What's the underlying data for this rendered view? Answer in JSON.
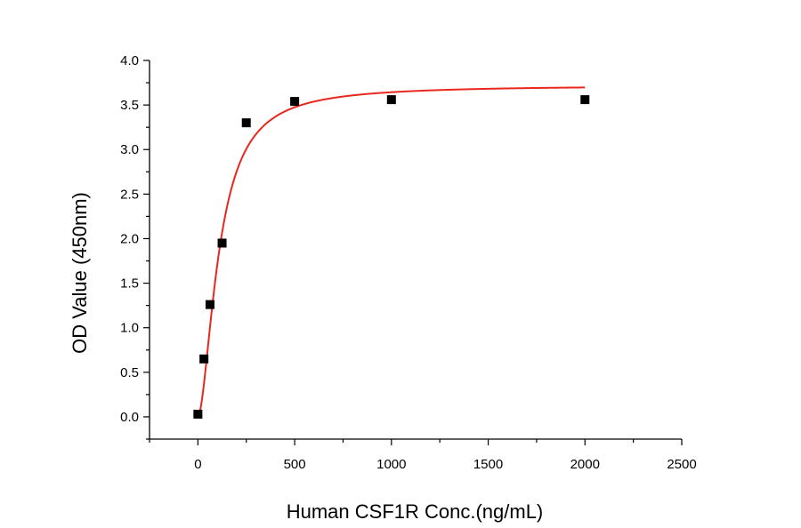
{
  "chart_data": {
    "type": "scatter",
    "title": "",
    "xlabel": "Human CSF1R Conc.(ng/mL)",
    "ylabel": "OD Value (450nm)",
    "xlim": [
      -250,
      2500
    ],
    "ylim": [
      -0.25,
      4.0
    ],
    "xticks": [
      0,
      500,
      1000,
      1500,
      2000,
      2500
    ],
    "yticks": [
      0.0,
      0.5,
      1.0,
      1.5,
      2.0,
      2.5,
      3.0,
      3.5,
      4.0
    ],
    "xtick_labels": [
      "0",
      "500",
      "1000",
      "1500",
      "2000",
      "2500"
    ],
    "ytick_labels": [
      "0.0",
      "0.5",
      "1.0",
      "1.5",
      "2.0",
      "2.5",
      "3.0",
      "3.5",
      "4.0"
    ],
    "grid": false,
    "legend": "none",
    "series": [
      {
        "marker": "square",
        "color": "#000000",
        "x": [
          0,
          31.25,
          62.5,
          125,
          250,
          500,
          1000,
          2000
        ],
        "y": [
          0.03,
          0.65,
          1.26,
          1.95,
          3.3,
          3.54,
          3.56,
          3.56
        ]
      }
    ],
    "fit": {
      "model": "4PL",
      "color": "#e8281f",
      "x_range": [
        0,
        2000
      ],
      "params": {
        "bottom": 0.0,
        "top": 3.72,
        "ec50": 110,
        "hill": 1.75
      }
    }
  }
}
